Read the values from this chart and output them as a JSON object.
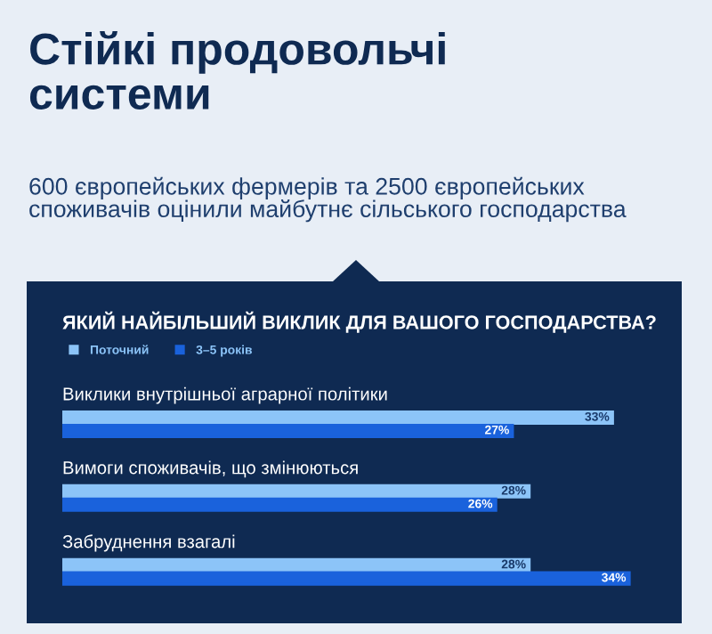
{
  "chart_data": {
    "type": "bar",
    "orientation": "horizontal",
    "title": "Стійкі продовольчі системи",
    "subtitle": "600 європейських фермерів та 2500 європейських споживачів оцінили майбутнє сільського господарства",
    "annotations": [
      "ЯКИЙ НАЙБІЛЬШИЙ ВИКЛИК ДЛЯ ВАШОГО ГОСПОДАРСТВА?"
    ],
    "categories": [
      "Виклики внутрішньої аграрної політики",
      "Вимоги споживачів, що змінюються",
      "Забруднення взагалі"
    ],
    "series": [
      {
        "name": "Поточний",
        "color": "#8cc4f8",
        "values": [
          33,
          28,
          28
        ],
        "value_labels": [
          "33%",
          "28%",
          "28%"
        ]
      },
      {
        "name": "3–5 років",
        "color": "#1a62dc",
        "values": [
          27,
          26,
          34
        ],
        "value_labels": [
          "27%",
          "26%",
          "34%"
        ]
      }
    ],
    "legend": "top left"
  }
}
